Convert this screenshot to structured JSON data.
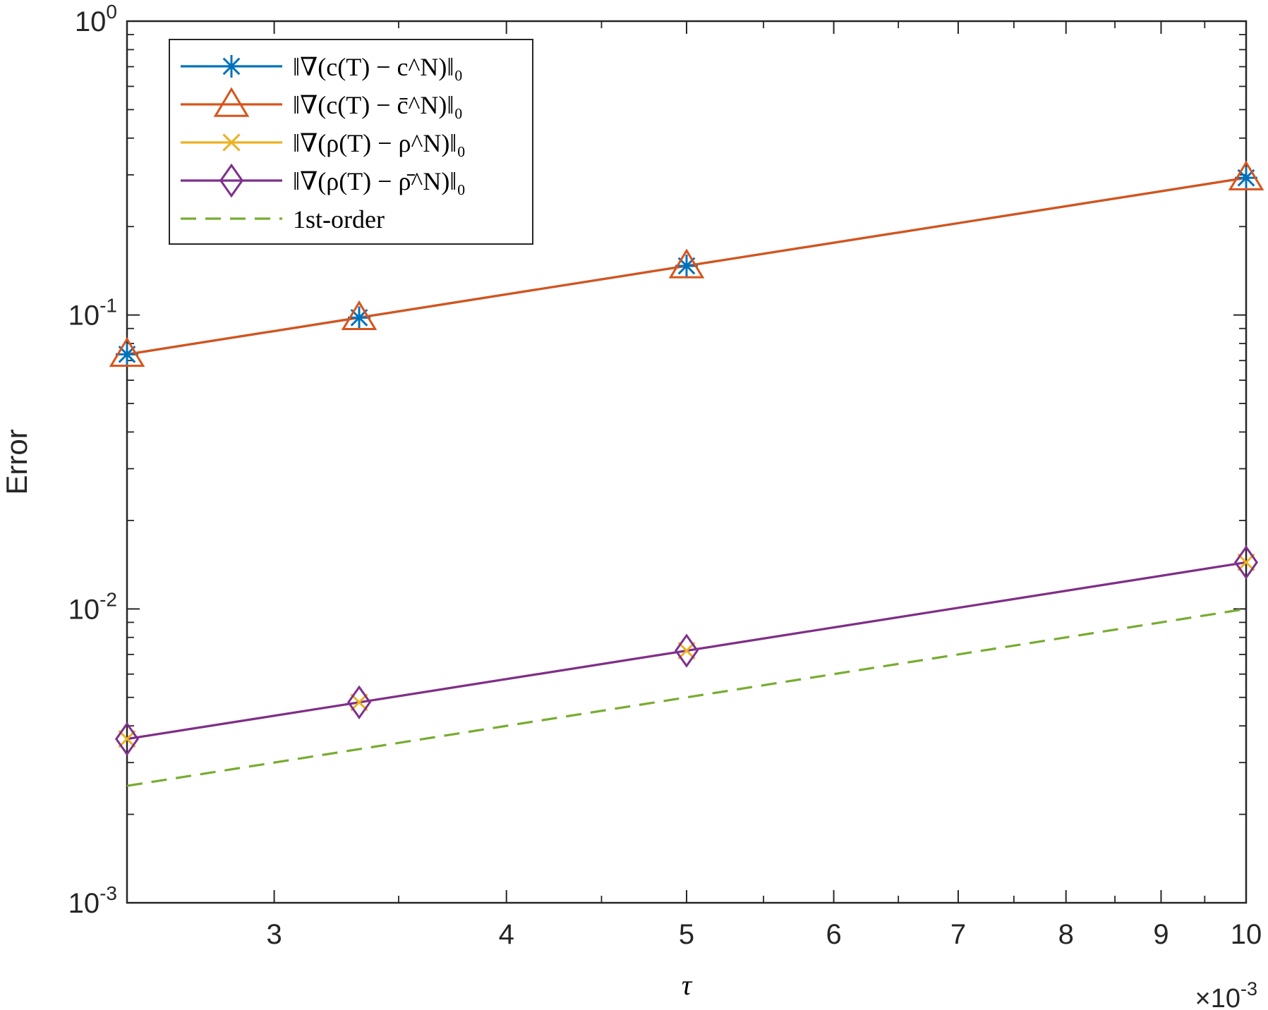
{
  "chart_data": {
    "type": "line",
    "xscale": "log",
    "yscale": "log",
    "xlim": [
      0.0025,
      0.01
    ],
    "ylim": [
      0.001,
      1
    ],
    "xlabel": "τ",
    "ylabel": "Error",
    "x_exponent_label": "×10",
    "x_exponent_power": "-3",
    "x_ticks": [
      0.003,
      0.004,
      0.005,
      0.006,
      0.007,
      0.008,
      0.009,
      0.01
    ],
    "x_tick_labels": [
      "3",
      "4",
      "5",
      "6",
      "7",
      "8",
      "9",
      "10"
    ],
    "y_ticks": [
      0.001,
      0.01,
      0.1,
      1
    ],
    "y_tick_labels": [
      {
        "base": "10",
        "exp": "-3"
      },
      {
        "base": "10",
        "exp": "-2"
      },
      {
        "base": "10",
        "exp": "-1"
      },
      {
        "base": "10",
        "exp": "0"
      }
    ],
    "grid": false,
    "legend_position": "top-left",
    "series": [
      {
        "name": "‖∇(c(T) − c^N)‖₀",
        "color": "#0072BD",
        "marker": "asterisk",
        "line": "solid",
        "x": [
          0.0025,
          0.003333,
          0.005,
          0.01
        ],
        "y": [
          0.0735,
          0.098,
          0.147,
          0.293
        ]
      },
      {
        "name": "‖∇(c(T) − c̄^N)‖₀",
        "color": "#D95319",
        "marker": "triangle",
        "line": "solid",
        "x": [
          0.0025,
          0.003333,
          0.005,
          0.01
        ],
        "y": [
          0.0735,
          0.098,
          0.147,
          0.293
        ]
      },
      {
        "name": "‖∇(ρ(T) − ρ^N)‖₀",
        "color": "#EDB120",
        "marker": "x",
        "line": "solid",
        "x": [
          0.0025,
          0.003333,
          0.005,
          0.01
        ],
        "y": [
          0.00361,
          0.00481,
          0.00721,
          0.0144
        ]
      },
      {
        "name": "‖∇(ρ(T) − ρ̄^N)‖₀",
        "color": "#7E2F8E",
        "marker": "diamond",
        "line": "solid",
        "x": [
          0.0025,
          0.003333,
          0.005,
          0.01
        ],
        "y": [
          0.00361,
          0.00481,
          0.00721,
          0.0144
        ]
      },
      {
        "name": "1st-order",
        "color": "#77AC30",
        "marker": "none",
        "line": "dashed",
        "x": [
          0.0025,
          0.01
        ],
        "y": [
          0.0025,
          0.01
        ]
      }
    ]
  }
}
